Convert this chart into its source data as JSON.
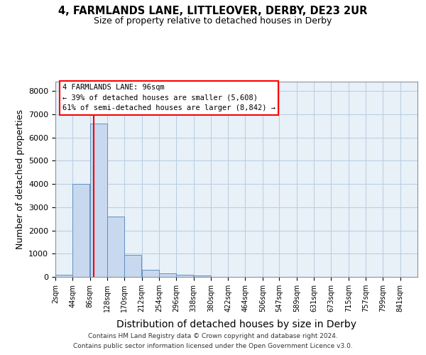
{
  "title": "4, FARMLANDS LANE, LITTLEOVER, DERBY, DE23 2UR",
  "subtitle": "Size of property relative to detached houses in Derby",
  "xlabel": "Distribution of detached houses by size in Derby",
  "ylabel": "Number of detached properties",
  "bar_color": "#c8d8ee",
  "bar_edge_color": "#6090c0",
  "background_color": "#e8f0f8",
  "bin_edges": [
    2,
    44,
    86,
    128,
    170,
    212,
    254,
    296,
    338,
    380,
    422,
    464,
    506,
    547,
    589,
    631,
    673,
    715,
    757,
    799,
    841
  ],
  "bar_heights": [
    100,
    4000,
    6600,
    2600,
    950,
    300,
    150,
    100,
    50,
    10,
    5,
    5,
    5,
    5,
    3,
    3,
    3,
    3,
    3,
    3,
    3
  ],
  "red_line_x": 96,
  "annotation_line1": "4 FARMLANDS LANE: 96sqm",
  "annotation_line2": "← 39% of detached houses are smaller (5,608)",
  "annotation_line3": "61% of semi-detached houses are larger (8,842) →",
  "ylim": [
    0,
    8400
  ],
  "yticks": [
    0,
    1000,
    2000,
    3000,
    4000,
    5000,
    6000,
    7000,
    8000
  ],
  "footer_line1": "Contains HM Land Registry data © Crown copyright and database right 2024.",
  "footer_line2": "Contains public sector information licensed under the Open Government Licence v3.0.",
  "grid_color": "#b8cce0",
  "tick_label_fontsize": 7,
  "ylabel_fontsize": 9,
  "xlabel_fontsize": 10
}
